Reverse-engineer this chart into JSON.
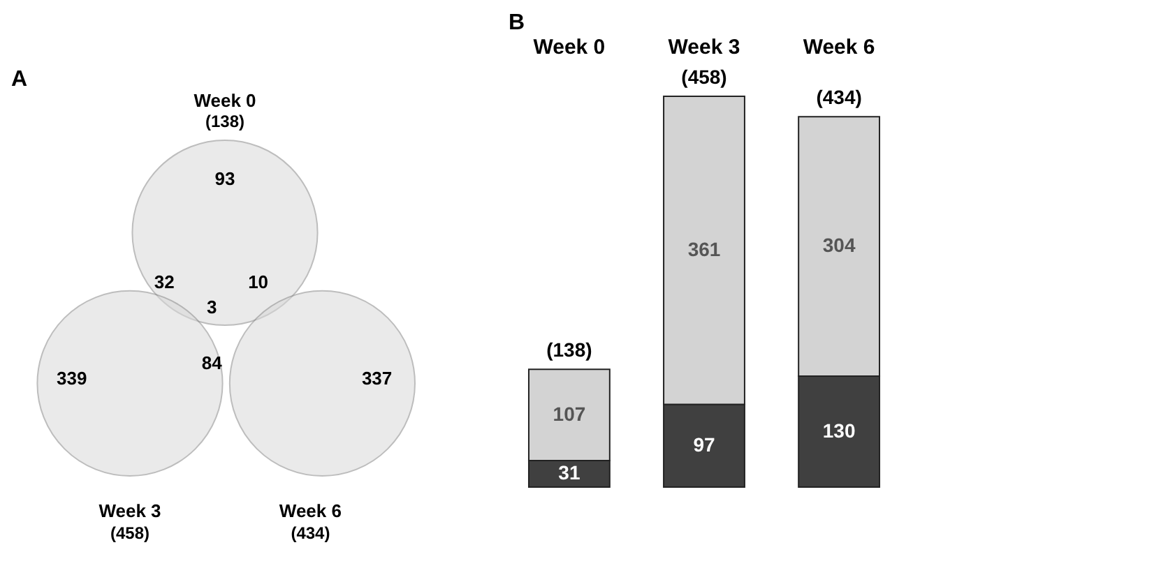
{
  "chart_data": [
    {
      "type": "other",
      "title": "A",
      "color": "#d9d9d9",
      "annotations": [
        "Week 0",
        "(138)",
        "Week 3",
        "(458)",
        "Week 6",
        "(434)",
        "93",
        "32",
        "10",
        "3",
        "339",
        "84",
        "337"
      ]
    },
    {
      "type": "bar",
      "title": "B",
      "stacked": true,
      "data_labels": true,
      "categories": [
        "Week 0",
        "Week 3",
        "Week 6"
      ],
      "totals": [
        "(138)",
        "(458)",
        "(434)"
      ],
      "series": [
        {
          "color": "#404040",
          "values": [
            31,
            97,
            130
          ]
        },
        {
          "color": "#d3d3d3",
          "values": [
            107,
            361,
            304
          ]
        }
      ]
    }
  ]
}
